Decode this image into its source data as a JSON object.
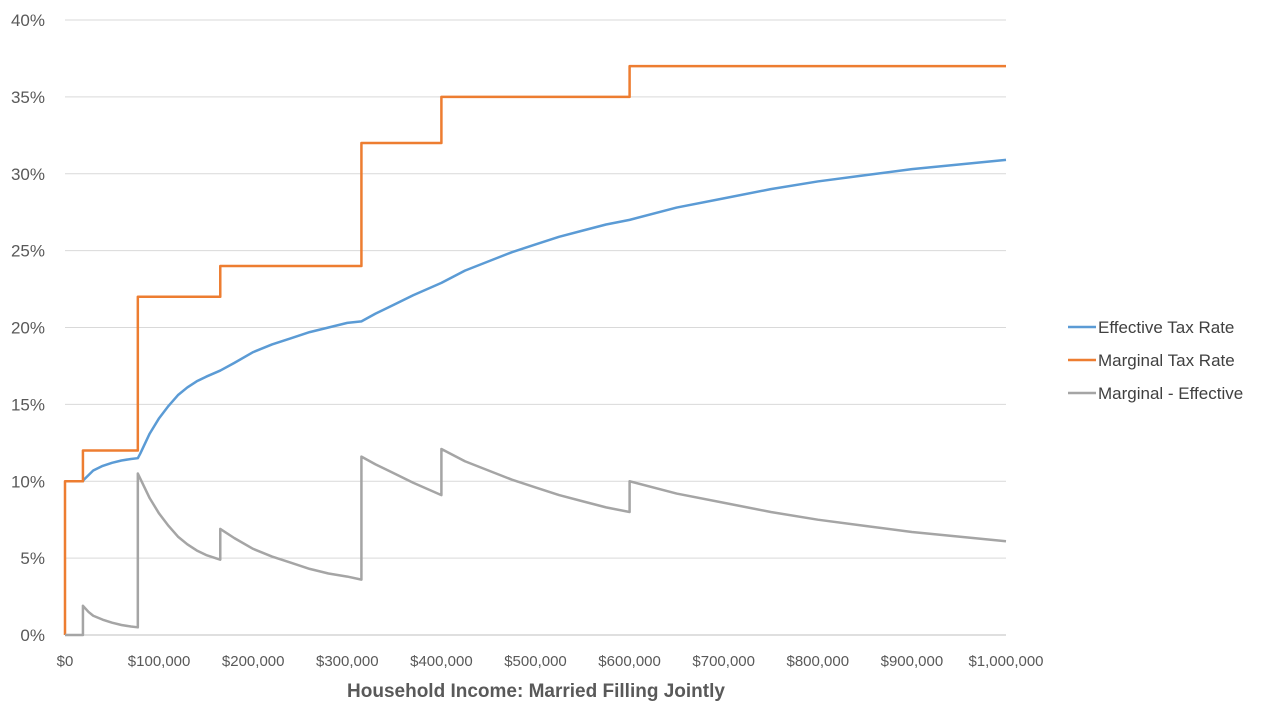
{
  "chart_data": {
    "type": "line",
    "title": "",
    "xlabel": "Household Income:  Married Filling Jointly",
    "ylabel": "",
    "xlim": [
      0,
      1000000
    ],
    "ylim": [
      0,
      40
    ],
    "grid": true,
    "legend_position": "right",
    "x_tick_labels": [
      "$0",
      "$100,000",
      "$200,000",
      "$300,000",
      "$400,000",
      "$500,000",
      "$600,000",
      "$700,000",
      "$800,000",
      "$900,000",
      "$1,000,000"
    ],
    "x_ticks": [
      0,
      100000,
      200000,
      300000,
      400000,
      500000,
      600000,
      700000,
      800000,
      900000,
      1000000
    ],
    "y_tick_labels": [
      "0%",
      "5%",
      "10%",
      "15%",
      "20%",
      "25%",
      "30%",
      "35%",
      "40%"
    ],
    "y_ticks": [
      0,
      5,
      10,
      15,
      20,
      25,
      30,
      35,
      40
    ],
    "series": [
      {
        "name": "Effective Tax Rate",
        "color": "#5b9bd5",
        "x": [
          0,
          19050,
          20000,
          25000,
          30000,
          40000,
          50000,
          60000,
          70000,
          77400,
          80000,
          90000,
          100000,
          110000,
          120000,
          130000,
          140000,
          150000,
          165000,
          180000,
          200000,
          220000,
          240000,
          260000,
          280000,
          300000,
          315000,
          330000,
          350000,
          370000,
          400000,
          425000,
          450000,
          475000,
          500000,
          525000,
          550000,
          575000,
          600000,
          650000,
          700000,
          750000,
          800000,
          850000,
          900000,
          950000,
          1000000
        ],
        "y": [
          10.0,
          10.0,
          10.1,
          10.4,
          10.7,
          11.0,
          11.2,
          11.35,
          11.45,
          11.5,
          11.8,
          13.1,
          14.1,
          14.9,
          15.6,
          16.1,
          16.5,
          16.8,
          17.2,
          17.7,
          18.4,
          18.9,
          19.3,
          19.7,
          20.0,
          20.3,
          20.4,
          20.9,
          21.5,
          22.1,
          22.9,
          23.7,
          24.3,
          24.9,
          25.4,
          25.9,
          26.3,
          26.7,
          27.0,
          27.8,
          28.4,
          29.0,
          29.5,
          29.9,
          30.3,
          30.6,
          30.9
        ]
      },
      {
        "name": "Marginal Tax Rate",
        "color": "#ed7d31",
        "x": [
          0,
          0.01,
          19050,
          19050.01,
          77400,
          77400.01,
          165000,
          165000.01,
          315000,
          315000.01,
          400000,
          400000.01,
          600000,
          600000.01,
          1000000
        ],
        "y": [
          0,
          10,
          10,
          12,
          12,
          22,
          22,
          24,
          24,
          32,
          32,
          35,
          35,
          37,
          37
        ]
      },
      {
        "name": "Marginal - Effective",
        "color": "#a5a5a5",
        "x": [
          0,
          19050,
          19050.01,
          25000,
          30000,
          40000,
          50000,
          60000,
          70000,
          77400,
          77400.01,
          90000,
          100000,
          110000,
          120000,
          130000,
          140000,
          150000,
          165000,
          165000.01,
          180000,
          200000,
          220000,
          240000,
          260000,
          280000,
          300000,
          315000,
          315000.01,
          330000,
          350000,
          370000,
          400000,
          400000.01,
          425000,
          450000,
          475000,
          500000,
          525000,
          550000,
          575000,
          600000,
          600000.01,
          650000,
          700000,
          750000,
          800000,
          850000,
          900000,
          950000,
          1000000
        ],
        "y": [
          0,
          0,
          1.9,
          1.5,
          1.25,
          1.0,
          0.8,
          0.65,
          0.55,
          0.5,
          10.5,
          8.9,
          7.9,
          7.1,
          6.4,
          5.9,
          5.5,
          5.2,
          4.9,
          6.9,
          6.3,
          5.6,
          5.1,
          4.7,
          4.3,
          4.0,
          3.8,
          3.6,
          11.6,
          11.1,
          10.5,
          9.9,
          9.1,
          12.1,
          11.3,
          10.7,
          10.1,
          9.6,
          9.1,
          8.7,
          8.3,
          8.0,
          10.0,
          9.2,
          8.6,
          8.0,
          7.5,
          7.1,
          6.7,
          6.4,
          6.1
        ]
      }
    ]
  }
}
